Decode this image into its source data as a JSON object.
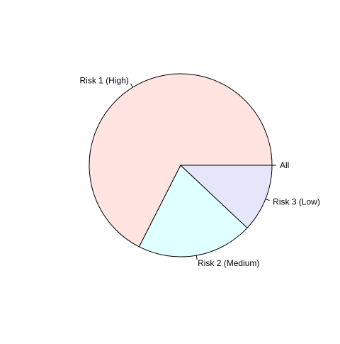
{
  "chart_data": {
    "type": "pie",
    "title": "",
    "start_angle_deg": 0,
    "direction": "counterclockwise",
    "slices": [
      {
        "label": "All",
        "value": 0.0,
        "color": "#ffffff"
      },
      {
        "label": "Risk 1 (High)",
        "value": 67.5,
        "color": "#ffe4e1"
      },
      {
        "label": "Risk 2 (Medium)",
        "value": 20.5,
        "color": "#e0ffff"
      },
      {
        "label": "Risk 3 (Low)",
        "value": 12.0,
        "color": "#e6e6fa"
      }
    ],
    "border_color": "#000000"
  }
}
